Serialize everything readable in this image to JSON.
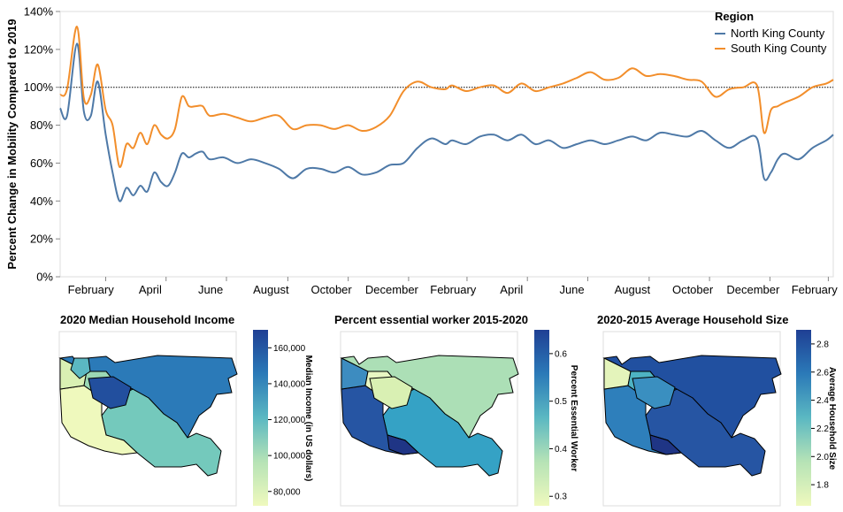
{
  "chart_data": [
    {
      "type": "line",
      "title": "",
      "xlabel": "",
      "ylabel": "Percent Change in Mobility Compared to 2019",
      "ylim": [
        0,
        140
      ],
      "y_ticks": [
        "0%",
        "20%",
        "40%",
        "60%",
        "80%",
        "100%",
        "120%",
        "140%"
      ],
      "x_ticks": [
        "February",
        "April",
        "June",
        "August",
        "October",
        "December",
        "February",
        "April",
        "June",
        "August",
        "October",
        "December",
        "February"
      ],
      "reference_line": 100,
      "grid": false,
      "legend": {
        "title": "Region",
        "position": "top-right"
      },
      "x": [
        "2020-01-15",
        "2020-01-22",
        "2020-02-01",
        "2020-02-08",
        "2020-02-15",
        "2020-02-22",
        "2020-03-01",
        "2020-03-08",
        "2020-03-15",
        "2020-03-22",
        "2020-03-29",
        "2020-04-05",
        "2020-04-12",
        "2020-04-19",
        "2020-04-26",
        "2020-05-03",
        "2020-05-10",
        "2020-05-17",
        "2020-05-24",
        "2020-05-31",
        "2020-06-07",
        "2020-06-14",
        "2020-06-28",
        "2020-07-12",
        "2020-07-26",
        "2020-08-09",
        "2020-08-23",
        "2020-09-06",
        "2020-09-20",
        "2020-10-04",
        "2020-10-18",
        "2020-11-01",
        "2020-11-15",
        "2020-11-29",
        "2020-12-13",
        "2020-12-27",
        "2021-01-10",
        "2021-01-24",
        "2021-02-07",
        "2021-02-14",
        "2021-02-28",
        "2021-03-14",
        "2021-03-28",
        "2021-04-11",
        "2021-04-25",
        "2021-05-09",
        "2021-05-23",
        "2021-06-06",
        "2021-06-20",
        "2021-07-04",
        "2021-07-18",
        "2021-08-01",
        "2021-08-15",
        "2021-08-29",
        "2021-09-12",
        "2021-09-26",
        "2021-10-10",
        "2021-10-24",
        "2021-11-07",
        "2021-11-21",
        "2021-12-05",
        "2021-12-19",
        "2021-12-26",
        "2022-01-02",
        "2022-01-09",
        "2022-01-16",
        "2022-01-30",
        "2022-02-13",
        "2022-02-27",
        "2022-03-06"
      ],
      "series": [
        {
          "name": "North King County",
          "color": "#4e79a7",
          "values": [
            89,
            85,
            123,
            87,
            85,
            103,
            75,
            55,
            40,
            47,
            43,
            48,
            45,
            55,
            50,
            48,
            55,
            65,
            63,
            65,
            66,
            62,
            63,
            60,
            62,
            60,
            57,
            52,
            57,
            57,
            55,
            58,
            54,
            55,
            59,
            60,
            68,
            73,
            70,
            72,
            70,
            74,
            75,
            72,
            75,
            70,
            72,
            68,
            70,
            72,
            70,
            72,
            74,
            72,
            76,
            75,
            74,
            77,
            72,
            68,
            72,
            73,
            52,
            55,
            62,
            65,
            62,
            68,
            72,
            75
          ]
        },
        {
          "name": "South King County",
          "color": "#f28e2b",
          "values": [
            96,
            99,
            132,
            94,
            96,
            112,
            88,
            80,
            58,
            70,
            68,
            76,
            70,
            80,
            75,
            73,
            78,
            95,
            90,
            90,
            90,
            85,
            86,
            84,
            82,
            84,
            85,
            78,
            80,
            80,
            78,
            80,
            77,
            79,
            85,
            98,
            103,
            100,
            99,
            101,
            98,
            100,
            101,
            97,
            102,
            98,
            100,
            102,
            105,
            108,
            104,
            105,
            110,
            106,
            107,
            106,
            104,
            103,
            95,
            99,
            100,
            101,
            76,
            88,
            90,
            92,
            95,
            100,
            102,
            104
          ]
        }
      ]
    },
    {
      "type": "heatmap",
      "title": "2020 Median Household Income",
      "colorbar_label": "Median Income (in US dollars)",
      "colorbar_ticks": [
        "80,000",
        "100,000",
        "120,000",
        "140,000",
        "160,000"
      ],
      "colorbar_range": [
        72000,
        170000
      ]
    },
    {
      "type": "heatmap",
      "title": "Percent essential worker 2015-2020",
      "colorbar_label": "Percent Essential Worker",
      "colorbar_ticks": [
        "0.3",
        "0.4",
        "0.5",
        "0.6"
      ],
      "colorbar_range": [
        0.28,
        0.65
      ]
    },
    {
      "type": "heatmap",
      "title": "2020-2015 Average Household Size",
      "colorbar_label": "Average Household Size",
      "colorbar_ticks": [
        "1.8",
        "2.0",
        "2.2",
        "2.4",
        "2.6",
        "2.8"
      ],
      "colorbar_range": [
        1.65,
        2.9
      ]
    }
  ]
}
